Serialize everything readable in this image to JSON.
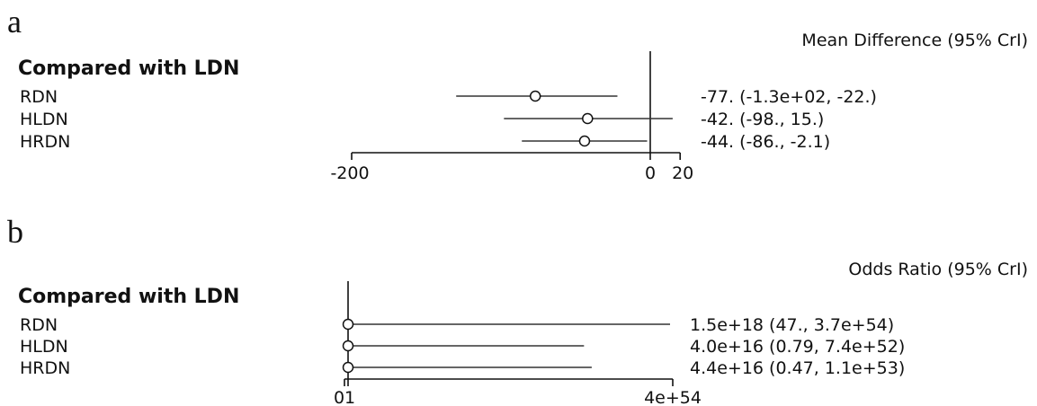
{
  "chart_data": [
    {
      "type": "forest",
      "panel_label": "a",
      "header": "Compared with LDN",
      "estimate_column_title": "Mean Difference (95% CrI)",
      "reference_line": 0,
      "xlim": [
        -200,
        20
      ],
      "ticks": [
        {
          "value": -200,
          "label": "-200"
        },
        {
          "value": 0,
          "label": "0"
        },
        {
          "value": 20,
          "label": "20"
        }
      ],
      "rows": [
        {
          "name": "RDN",
          "estimate": -77,
          "lower": -130,
          "upper": -22,
          "text": "-77. (-1.3e+02, -22.)"
        },
        {
          "name": "HLDN",
          "estimate": -42,
          "lower": -98,
          "upper": 15,
          "text": "-42. (-98., 15.)"
        },
        {
          "name": "HRDN",
          "estimate": -44,
          "lower": -86,
          "upper": -2.1,
          "text": "-44. (-86., -2.1)"
        }
      ]
    },
    {
      "type": "forest",
      "panel_label": "b",
      "header": "Compared with LDN",
      "estimate_column_title": "Odds Ratio (95% CrI)",
      "reference_line": 1,
      "xlim": [
        0,
        4e+54
      ],
      "ticks": [
        {
          "value": 0,
          "label": "0"
        },
        {
          "value": 1,
          "label": "1"
        },
        {
          "value": 4e+54,
          "label": "4e+54"
        }
      ],
      "rows": [
        {
          "name": "RDN",
          "estimate": 1.5e+18,
          "lower": 47,
          "upper": 3.7e+54,
          "text": "1.5e+18 (47., 3.7e+54)"
        },
        {
          "name": "HLDN",
          "estimate": 4e+16,
          "lower": 0.79,
          "upper": 7.4e+52,
          "text": "4.0e+16 (0.79, 7.4e+52)"
        },
        {
          "name": "HRDN",
          "estimate": 4.4e+16,
          "lower": 0.47,
          "upper": 1.1e+53,
          "text": "4.4e+16 (0.47, 1.1e+53)"
        }
      ]
    }
  ]
}
